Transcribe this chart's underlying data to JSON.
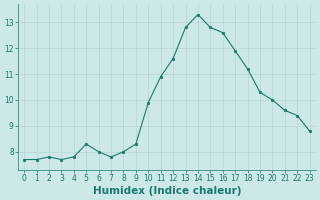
{
  "x": [
    0,
    1,
    2,
    3,
    4,
    5,
    6,
    7,
    8,
    9,
    10,
    11,
    12,
    13,
    14,
    15,
    16,
    17,
    18,
    19,
    20,
    21,
    22,
    23
  ],
  "y": [
    7.7,
    7.7,
    7.8,
    7.7,
    7.8,
    8.3,
    8.0,
    7.8,
    8.0,
    8.3,
    9.9,
    10.9,
    11.6,
    12.8,
    13.3,
    12.8,
    12.6,
    11.9,
    11.2,
    10.3,
    10.0,
    9.6,
    9.4,
    8.8
  ],
  "xlabel": "Humidex (Indice chaleur)",
  "ylim": [
    7.3,
    13.7
  ],
  "xlim": [
    -0.5,
    23.5
  ],
  "yticks": [
    8,
    9,
    10,
    11,
    12,
    13
  ],
  "xticks": [
    0,
    1,
    2,
    3,
    4,
    5,
    6,
    7,
    8,
    9,
    10,
    11,
    12,
    13,
    14,
    15,
    16,
    17,
    18,
    19,
    20,
    21,
    22,
    23
  ],
  "line_color": "#1a7a6e",
  "marker_color": "#1a7a6e",
  "bg_color": "#cce8e8",
  "grid_color": "#b8d4d4",
  "tick_label_color": "#1a7a6e",
  "xlabel_color": "#1a7a6e",
  "tick_label_fontsize": 5.5,
  "xlabel_fontsize": 7.5
}
